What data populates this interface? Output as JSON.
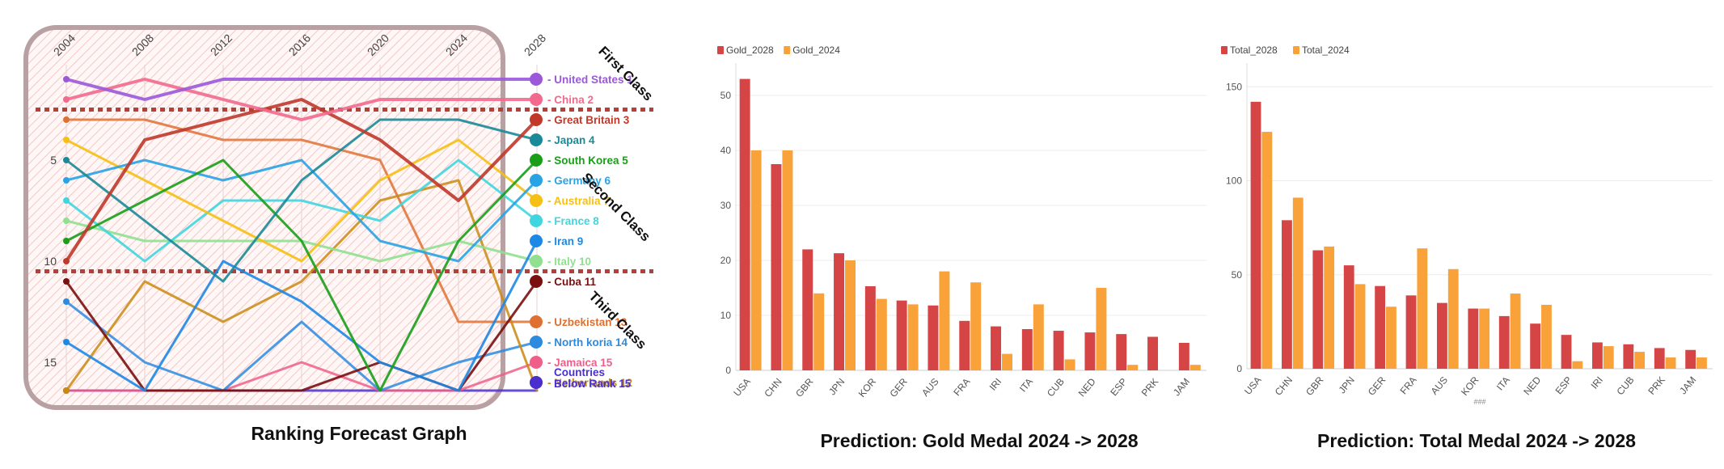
{
  "chart_data": [
    {
      "type": "line",
      "title": "Ranking Forecast Graph",
      "x": [
        "2004",
        "2008",
        "2012",
        "2016",
        "2020",
        "2024",
        "2028"
      ],
      "y_ticks": [
        "5",
        "10",
        "15"
      ],
      "ylim": [
        16.4,
        0
      ],
      "class_labels": [
        "First Class",
        "Second Class",
        "Third Class"
      ],
      "series": [
        {
          "name": "United States 1",
          "color": "#9b59d9",
          "ranks": [
            1,
            2,
            1,
            1,
            1,
            1,
            1
          ]
        },
        {
          "name": "China 2",
          "color": "#f26a8d",
          "ranks": [
            2,
            1,
            2,
            3,
            2,
            2,
            2
          ]
        },
        {
          "name": "Great Britain 3",
          "color": "#c0392b",
          "ranks": [
            10,
            4,
            3,
            2,
            4,
            7,
            3
          ]
        },
        {
          "name": "Japan 4",
          "color": "#1a8a98",
          "ranks": [
            5,
            8,
            11,
            6,
            3,
            3,
            4
          ]
        },
        {
          "name": "South Korea 5",
          "color": "#1a9e1a",
          "ranks": [
            9,
            7,
            5,
            9,
            16.4,
            9,
            5
          ]
        },
        {
          "name": "Germany 6",
          "color": "#27a3e6",
          "ranks": [
            6,
            5,
            6,
            5,
            9,
            10,
            6
          ]
        },
        {
          "name": "Australia 7",
          "color": "#f5c013",
          "ranks": [
            4,
            6,
            8,
            10,
            6,
            4,
            7
          ]
        },
        {
          "name": "France 8",
          "color": "#40d6e0",
          "ranks": [
            7,
            10,
            7,
            7,
            8,
            5,
            8
          ]
        },
        {
          "name": "Iran 9",
          "color": "#1e88e5",
          "ranks": [
            14,
            16.4,
            10,
            12,
            15,
            16.4,
            9
          ]
        },
        {
          "name": "Italy 10",
          "color": "#90e090",
          "ranks": [
            8,
            9,
            9,
            9,
            10,
            9,
            10
          ]
        },
        {
          "name": "Cuba 11",
          "color": "#7a1010",
          "ranks": [
            11,
            16.4,
            16.4,
            16.4,
            15,
            16.4,
            11
          ]
        },
        {
          "name": "Netherlands 12",
          "color": "#c98a10",
          "ranks": [
            16.4,
            11,
            13,
            11,
            7,
            6,
            16.4
          ]
        },
        {
          "name": "Uzbekistan 13",
          "color": "#e07030",
          "ranks": [
            3,
            3,
            4,
            4,
            5,
            13,
            13
          ]
        },
        {
          "name": "North koria 14",
          "color": "#2c8ae0",
          "ranks": [
            12,
            15,
            16.4,
            13,
            16.4,
            15,
            14
          ]
        },
        {
          "name": "Jamaica 15",
          "color": "#ef5f8a",
          "ranks": [
            16.4,
            16.4,
            16.4,
            15,
            16.4,
            16.4,
            15
          ]
        },
        {
          "name": "Countries Below Rank 15",
          "color": "#4a2fcf",
          "ranks": [
            16.4,
            16.4,
            16.4,
            16.4,
            16.4,
            16.4,
            16.4
          ]
        }
      ]
    },
    {
      "type": "bar",
      "title": "Prediction: Gold Medal 2024 -> 2028",
      "categories": [
        "USA",
        "CHN",
        "GBR",
        "JPN",
        "KOR",
        "GER",
        "AUS",
        "FRA",
        "IRI",
        "ITA",
        "CUB",
        "NED",
        "ESP",
        "PRK",
        "JAM"
      ],
      "series": [
        {
          "name": "Gold_2028",
          "color": "#d64545",
          "values": [
            53,
            37.5,
            22,
            21.3,
            15.3,
            12.7,
            11.8,
            9,
            8,
            7.5,
            7.2,
            6.9,
            6.6,
            6.1,
            5
          ]
        },
        {
          "name": "Gold_2024",
          "color": "#f9a23a",
          "values": [
            40,
            40,
            14,
            20,
            13,
            12,
            18,
            16,
            3,
            12,
            2,
            15,
            1,
            0,
            1
          ]
        }
      ],
      "y_ticks": [
        "0",
        "10",
        "20",
        "30",
        "40",
        "50"
      ],
      "ylim": [
        0,
        55
      ]
    },
    {
      "type": "bar",
      "title": "Prediction: Total Medal 2024 -> 2028",
      "categories": [
        "USA",
        "CHN",
        "GBR",
        "JPN",
        "GER",
        "FRA",
        "AUS",
        "KOR",
        "ITA",
        "NED",
        "ESP",
        "IRI",
        "CUB",
        "PRK",
        "JAM"
      ],
      "series": [
        {
          "name": "Total_2028",
          "color": "#d64545",
          "values": [
            142,
            79,
            63,
            55,
            44,
            39,
            35,
            32,
            28,
            24,
            18,
            14,
            13,
            11,
            10
          ]
        },
        {
          "name": "Total_2024",
          "color": "#f9a23a",
          "values": [
            126,
            91,
            65,
            45,
            33,
            64,
            53,
            32,
            40,
            34,
            4,
            12,
            9,
            6,
            6
          ]
        }
      ],
      "y_ticks": [
        "0",
        "50",
        "100",
        "150"
      ],
      "ylim": [
        0,
        160
      ],
      "xlabel": "###"
    }
  ]
}
